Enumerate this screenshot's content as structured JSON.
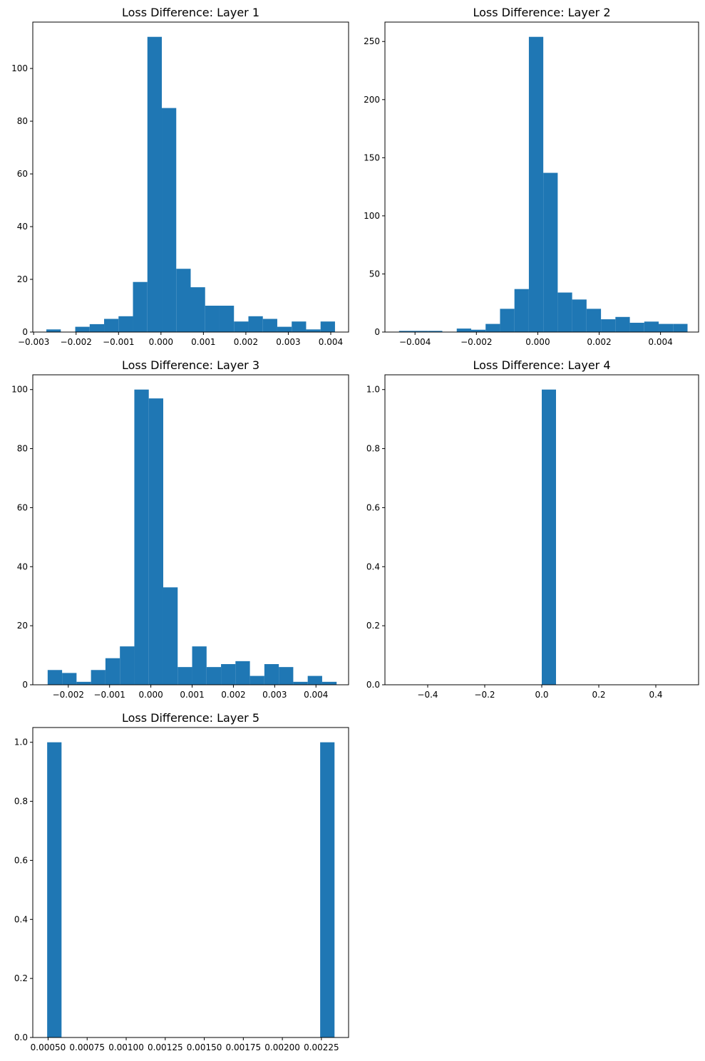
{
  "figure": {
    "description": "2x3 grid of histograms, 5 used",
    "bar_color": "#1f77b4"
  },
  "chart_data": [
    {
      "type": "bar",
      "title": "Loss Difference: Layer 1",
      "xlabel": "",
      "ylabel": "",
      "xlim": [
        -0.00302,
        0.00442
      ],
      "ylim": [
        0,
        117.6
      ],
      "bin_edges": [
        -0.0027,
        -0.00236,
        -0.00202,
        -0.00168,
        -0.00134,
        -0.001,
        -0.00066,
        -0.00032,
        2e-05,
        0.00036,
        0.0007,
        0.00104,
        0.00138,
        0.00172,
        0.00206,
        0.0024,
        0.00274,
        0.00308,
        0.00342,
        0.00376,
        0.0041
      ],
      "values": [
        1,
        0,
        2,
        3,
        5,
        6,
        19,
        112,
        85,
        24,
        17,
        10,
        10,
        4,
        6,
        5,
        2,
        4,
        1,
        4
      ],
      "xticks": [
        -0.003,
        -0.002,
        -0.001,
        0.0,
        0.001,
        0.002,
        0.003,
        0.004
      ],
      "xtick_labels": [
        "−0.003",
        "−0.002",
        "−0.001",
        "0.000",
        "0.001",
        "0.002",
        "0.003",
        "0.004"
      ],
      "yticks": [
        0,
        20,
        40,
        60,
        80,
        100
      ],
      "ytick_labels": [
        "0",
        "20",
        "40",
        "60",
        "80",
        "100"
      ]
    },
    {
      "type": "bar",
      "title": "Loss Difference: Layer 2",
      "xlabel": "",
      "ylabel": "",
      "xlim": [
        -0.00498,
        0.00524
      ],
      "ylim": [
        0,
        266.7
      ],
      "bin_edges": [
        -0.00452,
        -0.00405,
        -0.00358,
        -0.00311,
        -0.00264,
        -0.00217,
        -0.0017,
        -0.00123,
        -0.00076,
        -0.00029,
        0.00018,
        0.00065,
        0.00112,
        0.00159,
        0.00206,
        0.00253,
        0.003,
        0.00347,
        0.00394,
        0.00441,
        0.00488
      ],
      "values": [
        1,
        1,
        1,
        0,
        3,
        2,
        7,
        20,
        37,
        254,
        137,
        34,
        28,
        20,
        11,
        13,
        8,
        9,
        7,
        7
      ],
      "xticks": [
        -0.004,
        -0.002,
        0.0,
        0.002,
        0.004
      ],
      "xtick_labels": [
        "−0.004",
        "−0.002",
        "0.000",
        "0.002",
        "0.004"
      ],
      "yticks": [
        0,
        50,
        100,
        150,
        200,
        250
      ],
      "ytick_labels": [
        "0",
        "50",
        "100",
        "150",
        "200",
        "250"
      ]
    },
    {
      "type": "bar",
      "title": "Loss Difference: Layer 3",
      "xlabel": "",
      "ylabel": "",
      "xlim": [
        -0.00286,
        0.00479
      ],
      "ylim": [
        0,
        105
      ],
      "bin_edges": [
        -0.0025,
        -0.00215,
        -0.0018,
        -0.00145,
        -0.0011,
        -0.00075,
        -0.0004,
        -5e-05,
        0.0003,
        0.00065,
        0.001,
        0.00135,
        0.0017,
        0.00205,
        0.0024,
        0.00275,
        0.0031,
        0.00345,
        0.0038,
        0.00415,
        0.0045
      ],
      "values": [
        5,
        4,
        1,
        5,
        9,
        13,
        100,
        97,
        33,
        6,
        13,
        6,
        7,
        8,
        3,
        7,
        6,
        1,
        3,
        1
      ],
      "xticks": [
        -0.002,
        -0.001,
        0.0,
        0.001,
        0.002,
        0.003,
        0.004
      ],
      "xtick_labels": [
        "−0.002",
        "−0.001",
        "0.000",
        "0.001",
        "0.002",
        "0.003",
        "0.004"
      ],
      "yticks": [
        0,
        20,
        40,
        60,
        80,
        100
      ],
      "ytick_labels": [
        "0",
        "20",
        "40",
        "60",
        "80",
        "100"
      ]
    },
    {
      "type": "bar",
      "title": "Loss Difference: Layer 4",
      "xlabel": "",
      "ylabel": "",
      "xlim": [
        -0.55,
        0.55
      ],
      "ylim": [
        0,
        1.05
      ],
      "bin_edges": [
        -0.5,
        -0.45,
        -0.4,
        -0.35,
        -0.3,
        -0.25,
        -0.2,
        -0.15,
        -0.1,
        -0.05,
        0.0,
        0.05,
        0.1,
        0.15,
        0.2,
        0.25,
        0.3,
        0.35,
        0.4,
        0.45,
        0.5
      ],
      "values": [
        0,
        0,
        0,
        0,
        0,
        0,
        0,
        0,
        0,
        0,
        1,
        0,
        0,
        0,
        0,
        0,
        0,
        0,
        0,
        0
      ],
      "xticks": [
        -0.4,
        -0.2,
        0.0,
        0.2,
        0.4
      ],
      "xtick_labels": [
        "−0.4",
        "−0.2",
        "0.0",
        "0.2",
        "0.4"
      ],
      "yticks": [
        0,
        0.2,
        0.4,
        0.6,
        0.8,
        1.0
      ],
      "ytick_labels": [
        "0.0",
        "0.2",
        "0.4",
        "0.6",
        "0.8",
        "1.0"
      ]
    },
    {
      "type": "bar",
      "title": "Loss Difference: Layer 5",
      "xlabel": "",
      "ylabel": "",
      "xlim": [
        0.000402,
        0.002424
      ],
      "ylim": [
        0,
        1.05
      ],
      "bin_edges": [
        0.000494,
        0.000586,
        0.000678,
        0.00077,
        0.000862,
        0.000954,
        0.001046,
        0.001138,
        0.00123,
        0.001322,
        0.001414,
        0.001506,
        0.001598,
        0.00169,
        0.001782,
        0.001874,
        0.001966,
        0.002058,
        0.00215,
        0.002242,
        0.002334
      ],
      "values": [
        1,
        0,
        0,
        0,
        0,
        0,
        0,
        0,
        0,
        0,
        0,
        0,
        0,
        0,
        0,
        0,
        0,
        0,
        0,
        1
      ],
      "xticks": [
        0.0005,
        0.00075,
        0.001,
        0.00125,
        0.0015,
        0.00175,
        0.002,
        0.00225
      ],
      "xtick_labels": [
        "0.00050",
        "0.00075",
        "0.00100",
        "0.00125",
        "0.00150",
        "0.00175",
        "0.00200",
        "0.00225"
      ],
      "yticks": [
        0,
        0.2,
        0.4,
        0.6,
        0.8,
        1.0
      ],
      "ytick_labels": [
        "0.0",
        "0.2",
        "0.4",
        "0.6",
        "0.8",
        "1.0"
      ]
    }
  ]
}
